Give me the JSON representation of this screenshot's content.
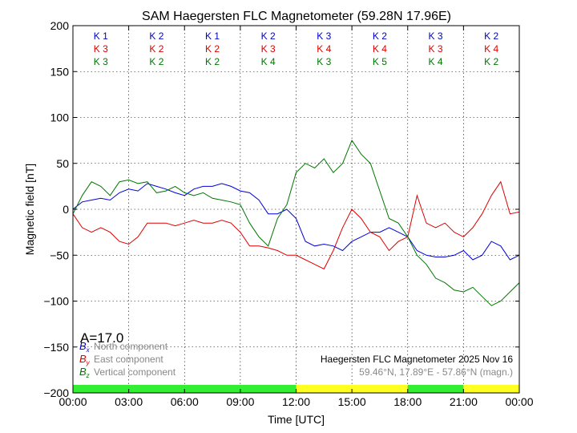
{
  "chart_data": {
    "type": "line",
    "title": "SAM Haegersten FLC Magnetometer (59.28N 17.96E)",
    "xlabel": "Time [UTC]",
    "ylabel": "Magnetic field [nT]",
    "xlim": [
      0,
      24
    ],
    "ylim": [
      -200,
      200
    ],
    "x_ticks": [
      {
        "value": 0,
        "label": "00:00"
      },
      {
        "value": 3,
        "label": "03:00"
      },
      {
        "value": 6,
        "label": "06:00"
      },
      {
        "value": 9,
        "label": "09:00"
      },
      {
        "value": 12,
        "label": "12:00"
      },
      {
        "value": 15,
        "label": "15:00"
      },
      {
        "value": 18,
        "label": "18:00"
      },
      {
        "value": 21,
        "label": "21:00"
      },
      {
        "value": 24,
        "label": "00:00"
      }
    ],
    "y_ticks": [
      {
        "value": 200,
        "label": "200"
      },
      {
        "value": 150,
        "label": "150"
      },
      {
        "value": 100,
        "label": "100"
      },
      {
        "value": 50,
        "label": "50"
      },
      {
        "value": 0,
        "label": "0"
      },
      {
        "value": -50,
        "label": "−50"
      },
      {
        "value": -100,
        "label": "−100"
      },
      {
        "value": -150,
        "label": "−150"
      },
      {
        "value": -200,
        "label": "−200"
      }
    ],
    "grid": true,
    "activity_index": "A=17.0",
    "source_label": "Haegersten FLC Magnetometer 2025 Nov 16",
    "coords_label": "59.46°N, 17.89°E - 57.86°N (magn.)",
    "legend_position": "bottom-left",
    "k_index": {
      "interval_centers": [
        1.5,
        4.5,
        7.5,
        10.5,
        13.5,
        16.5,
        19.5,
        22.5
      ],
      "rows": [
        {
          "color": "#0000cc",
          "labels": [
            "K 1",
            "K 2",
            "K 1",
            "K 2",
            "K 3",
            "K 2",
            "K 3",
            "K 2"
          ]
        },
        {
          "color": "#dd0000",
          "labels": [
            "K 3",
            "K 2",
            "K 2",
            "K 3",
            "K 4",
            "K 4",
            "K 3",
            "K 4"
          ]
        },
        {
          "color": "#007700",
          "labels": [
            "K 3",
            "K 2",
            "K 2",
            "K 4",
            "K 3",
            "K 5",
            "K 4",
            "K 2"
          ]
        }
      ]
    },
    "activity_bar": [
      {
        "start": 0,
        "end": 12,
        "color": "#33ee33"
      },
      {
        "start": 12,
        "end": 18,
        "color": "#ffff22"
      },
      {
        "start": 18,
        "end": 21,
        "color": "#33ee33"
      },
      {
        "start": 21,
        "end": 24,
        "color": "#ffff22"
      }
    ],
    "series": [
      {
        "symbol": "B",
        "subscript": "x",
        "label": "North component",
        "color": "#0000dd",
        "points": [
          [
            0,
            0
          ],
          [
            0.5,
            8
          ],
          [
            1,
            10
          ],
          [
            1.5,
            12
          ],
          [
            2,
            10
          ],
          [
            2.5,
            18
          ],
          [
            3,
            22
          ],
          [
            3.5,
            20
          ],
          [
            4,
            28
          ],
          [
            4.5,
            25
          ],
          [
            5,
            22
          ],
          [
            5.5,
            18
          ],
          [
            6,
            15
          ],
          [
            6.5,
            22
          ],
          [
            7,
            25
          ],
          [
            7.5,
            25
          ],
          [
            8,
            28
          ],
          [
            8.5,
            25
          ],
          [
            9,
            20
          ],
          [
            9.5,
            18
          ],
          [
            10,
            10
          ],
          [
            10.5,
            -5
          ],
          [
            11,
            -5
          ],
          [
            11.5,
            0
          ],
          [
            12,
            -10
          ],
          [
            12.5,
            -35
          ],
          [
            13,
            -40
          ],
          [
            13.5,
            -38
          ],
          [
            14,
            -40
          ],
          [
            14.5,
            -45
          ],
          [
            15,
            -35
          ],
          [
            15.5,
            -30
          ],
          [
            16,
            -25
          ],
          [
            16.5,
            -25
          ],
          [
            17,
            -20
          ],
          [
            17.5,
            -25
          ],
          [
            18,
            -30
          ],
          [
            18.5,
            -45
          ],
          [
            19,
            -50
          ],
          [
            19.5,
            -52
          ],
          [
            20,
            -52
          ],
          [
            20.5,
            -50
          ],
          [
            21,
            -45
          ],
          [
            21.5,
            -55
          ],
          [
            22,
            -50
          ],
          [
            22.5,
            -35
          ],
          [
            23,
            -40
          ],
          [
            23.5,
            -55
          ],
          [
            24,
            -50
          ]
        ]
      },
      {
        "symbol": "B",
        "subscript": "y",
        "label": "East component",
        "color": "#dd0000",
        "points": [
          [
            0,
            -5
          ],
          [
            0.5,
            -20
          ],
          [
            1,
            -25
          ],
          [
            1.5,
            -20
          ],
          [
            2,
            -25
          ],
          [
            2.5,
            -35
          ],
          [
            3,
            -38
          ],
          [
            3.5,
            -30
          ],
          [
            4,
            -15
          ],
          [
            4.5,
            -15
          ],
          [
            5,
            -15
          ],
          [
            5.5,
            -18
          ],
          [
            6,
            -15
          ],
          [
            6.5,
            -12
          ],
          [
            7,
            -15
          ],
          [
            7.5,
            -15
          ],
          [
            8,
            -12
          ],
          [
            8.5,
            -15
          ],
          [
            9,
            -25
          ],
          [
            9.5,
            -40
          ],
          [
            10,
            -40
          ],
          [
            10.5,
            -42
          ],
          [
            11,
            -45
          ],
          [
            11.5,
            -50
          ],
          [
            12,
            -50
          ],
          [
            12.5,
            -55
          ],
          [
            13,
            -60
          ],
          [
            13.5,
            -65
          ],
          [
            14,
            -45
          ],
          [
            14.5,
            -20
          ],
          [
            15,
            0
          ],
          [
            15.5,
            -10
          ],
          [
            16,
            -25
          ],
          [
            16.5,
            -30
          ],
          [
            17,
            -45
          ],
          [
            17.5,
            -35
          ],
          [
            18,
            -30
          ],
          [
            18.5,
            15
          ],
          [
            19,
            -15
          ],
          [
            19.5,
            -20
          ],
          [
            20,
            -15
          ],
          [
            20.5,
            -25
          ],
          [
            21,
            -30
          ],
          [
            21.5,
            -20
          ],
          [
            22,
            -5
          ],
          [
            22.5,
            15
          ],
          [
            23,
            30
          ],
          [
            23.5,
            -5
          ],
          [
            24,
            -3
          ]
        ]
      },
      {
        "symbol": "B",
        "subscript": "z",
        "label": "Vertical component",
        "color": "#007700",
        "points": [
          [
            0,
            -5
          ],
          [
            0.5,
            15
          ],
          [
            1,
            30
          ],
          [
            1.5,
            25
          ],
          [
            2,
            15
          ],
          [
            2.5,
            30
          ],
          [
            3,
            32
          ],
          [
            3.5,
            28
          ],
          [
            4,
            30
          ],
          [
            4.5,
            18
          ],
          [
            5,
            20
          ],
          [
            5.5,
            25
          ],
          [
            6,
            18
          ],
          [
            6.5,
            15
          ],
          [
            7,
            18
          ],
          [
            7.5,
            12
          ],
          [
            8,
            10
          ],
          [
            8.5,
            8
          ],
          [
            9,
            5
          ],
          [
            9.5,
            -15
          ],
          [
            10,
            -30
          ],
          [
            10.5,
            -40
          ],
          [
            11,
            -10
          ],
          [
            11.5,
            5
          ],
          [
            12,
            40
          ],
          [
            12.5,
            50
          ],
          [
            13,
            45
          ],
          [
            13.5,
            55
          ],
          [
            14,
            40
          ],
          [
            14.5,
            50
          ],
          [
            15,
            75
          ],
          [
            15.5,
            60
          ],
          [
            16,
            50
          ],
          [
            16.5,
            20
          ],
          [
            17,
            -10
          ],
          [
            17.5,
            -15
          ],
          [
            18,
            -30
          ],
          [
            18.5,
            -50
          ],
          [
            19,
            -60
          ],
          [
            19.5,
            -75
          ],
          [
            20,
            -80
          ],
          [
            20.5,
            -88
          ],
          [
            21,
            -90
          ],
          [
            21.5,
            -85
          ],
          [
            22,
            -95
          ],
          [
            22.5,
            -105
          ],
          [
            23,
            -100
          ],
          [
            23.5,
            -90
          ],
          [
            24,
            -80
          ]
        ]
      }
    ]
  }
}
